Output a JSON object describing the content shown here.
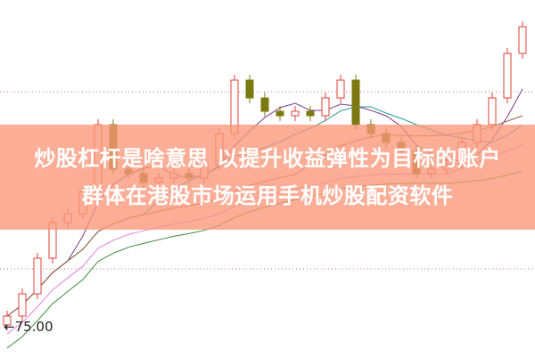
{
  "chart_data": {
    "type": "candlestick",
    "title": "",
    "xlabel": "",
    "ylabel": "",
    "ylim": [
      66,
      166.25
    ],
    "grid": "dotted horizontal lines",
    "annotation": "75.00",
    "colors": {
      "up": "#e0403a",
      "down": "#7a7a10",
      "ma5": "#7a3a8a",
      "ma10": "#2a9a9a",
      "ma20": "#a05a3a",
      "ma30": "#e080e0",
      "ma60": "#3a8a3a"
    },
    "open": [
      75,
      77.5,
      83.75,
      93.75,
      103.75,
      106.25,
      112.5,
      131.25,
      118.75,
      117.5,
      115,
      116.25,
      117.5,
      116.25,
      120,
      128.75,
      143.75,
      138.75,
      135,
      133.75,
      135,
      133.75,
      138.75,
      143.75,
      131.25,
      128.75,
      126.25,
      123.75,
      117.5,
      118.75,
      120,
      126.25,
      131.25,
      138.75,
      151.25
    ],
    "close": [
      77.5,
      83.75,
      93.75,
      103.75,
      106.25,
      112.5,
      131.25,
      118.75,
      117.5,
      115,
      116.25,
      117.5,
      116.25,
      120,
      128.75,
      143.75,
      138.75,
      135,
      133.75,
      135,
      133.75,
      138.75,
      143.75,
      131.25,
      128.75,
      126.25,
      123.75,
      117.5,
      118.75,
      120,
      126.25,
      131.25,
      138.75,
      151.25,
      158.75
    ]
  },
  "banner": {
    "line1": "炒股杠杆是啥意思 以提升收益弹性为目标的账户",
    "line2": "群体在港股市场运用手机炒股配资软件"
  },
  "low_label": "←75.00"
}
